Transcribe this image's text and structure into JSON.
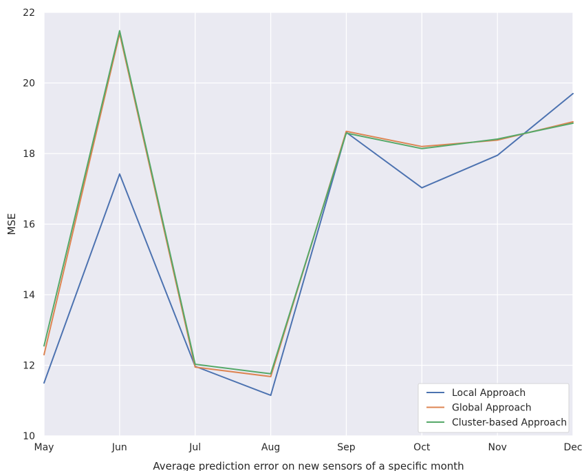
{
  "chart_data": {
    "type": "line",
    "xlabel": "Average prediction error on new sensors of a specific month",
    "ylabel": "MSE",
    "categories": [
      "May",
      "Jun",
      "Jul",
      "Aug",
      "Sep",
      "Oct",
      "Nov",
      "Dec"
    ],
    "ylim": [
      10,
      22
    ],
    "yticks": [
      10,
      12,
      14,
      16,
      18,
      20,
      22
    ],
    "grid": true,
    "legend_position": "bottom-right",
    "colors": {
      "background": "#EAEAF2",
      "grid": "#FFFFFF"
    },
    "series": [
      {
        "name": "Local Approach",
        "color": "#4C72B0",
        "values": [
          11.5,
          17.42,
          11.97,
          11.15,
          18.6,
          17.03,
          17.95,
          19.7
        ]
      },
      {
        "name": "Global Approach",
        "color": "#DD8452",
        "values": [
          12.3,
          21.4,
          11.95,
          11.68,
          18.63,
          18.2,
          18.38,
          18.9
        ]
      },
      {
        "name": "Cluster-based Approach",
        "color": "#55A868",
        "values": [
          12.55,
          21.48,
          12.03,
          11.76,
          18.58,
          18.14,
          18.41,
          18.86
        ]
      }
    ]
  }
}
